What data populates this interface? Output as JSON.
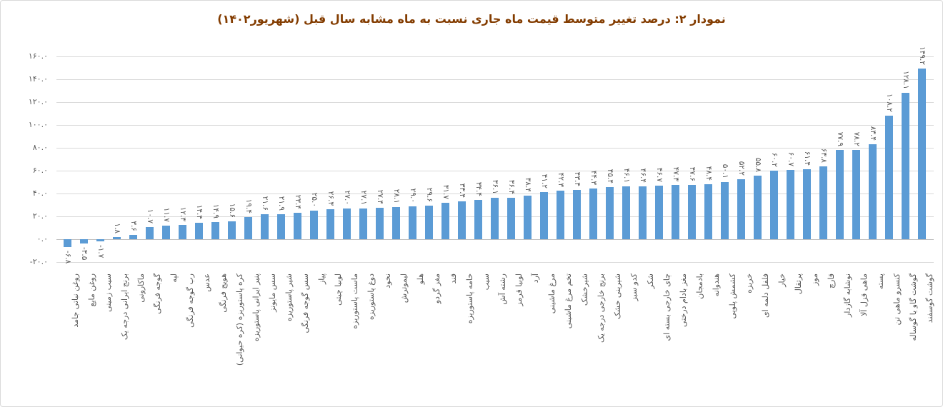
{
  "title": "نمودار ۲: درصد تغییر متوسط قیمت ماه جاری نسبت به ماه مشابه سال قبل (شهریور۱۴۰۲)",
  "colors": {
    "bar": "#5b9bd5",
    "title_text": "#833c00",
    "axis_text": "#595959",
    "gridline": "#d9d9d9",
    "zero_line": "#bfbfbf",
    "frame_border": "#d9d9d9"
  },
  "y_axis": {
    "min": -20,
    "max": 160,
    "step": 20,
    "ticks": [
      {
        "label": "۱۶۰.۰",
        "value": 160
      },
      {
        "label": "۱۴۰.۰",
        "value": 140
      },
      {
        "label": "۱۲۰.۰",
        "value": 120
      },
      {
        "label": "۱۰۰.۰",
        "value": 100
      },
      {
        "label": "۸۰.۰",
        "value": 80
      },
      {
        "label": "۶۰.۰",
        "value": 60
      },
      {
        "label": "۴۰.۰",
        "value": 40
      },
      {
        "label": "۲۰.۰",
        "value": 20
      },
      {
        "label": "۰.۰",
        "value": 0
      },
      {
        "label": "-۲۰.۰",
        "value": -20
      }
    ]
  },
  "chart_data": {
    "type": "bar",
    "title": "نمودار ۲: درصد تغییر متوسط قیمت ماه جاری نسبت به ماه مشابه سال قبل (شهریور۱۴۰۲)",
    "xlabel": "",
    "ylabel": "",
    "ylim": [
      -20,
      160
    ],
    "grid": true,
    "sorted": "ascending",
    "legend": "none",
    "categories": [
      "روغن نباتی جامد",
      "روغن مایع",
      "سیب زمینی",
      "برنج ایرانی درجه یک",
      "ماکارونی",
      "گوجه فرنگی",
      "لپه",
      "رب گوجه فرنگی",
      "عدس",
      "هویج فرنگی",
      "کره پاستوریزه (کره حیوانی)",
      "پنیر ایرانی پاستوریزه",
      "سس مایونز",
      "شیر پاستوریزه",
      "سس گوجه فرنگی",
      "پیاز",
      "لوبیا چیتی",
      "ماست پاستوریزه",
      "دوغ پاستوریزه",
      "نخود",
      "لیموترش",
      "هلو",
      "مغز گردو",
      "قند",
      "خامه پاستوریزه",
      "سیب",
      "رشته آش",
      "لوبیا قرمز",
      "آرد",
      "مرغ ماشینی",
      "تخم مرغ ماشینی",
      "شیرخشک",
      "برنج خارجی درجه یک",
      "شیرینی خشک",
      "کدو سبز",
      "شکر",
      "چای خارجی بسته ای",
      "مغز بادام درختی",
      "بادمجان",
      "هندوانه",
      "کشمش پلویی",
      "خربزه",
      "فلفل دلمه ای",
      "خیار",
      "پرتقال",
      "موز",
      "قارچ",
      "نوشابه گازدار",
      "ماهی قزل آلا",
      "پسته",
      "کنسرو ماهی تن",
      "گوشت گاو یا گوساله",
      "گوشت گوسفند"
    ],
    "values": [
      -6.8,
      -3.5,
      -1.7,
      1.8,
      3.6,
      10.7,
      11.7,
      12.3,
      14.4,
      14.9,
      15.6,
      19.4,
      21.6,
      21.9,
      23.4,
      25.0,
      26.3,
      27.0,
      27.1,
      27.4,
      28.1,
      29.0,
      29.6,
      31.7,
      33.4,
      34.4,
      36.1,
      36.4,
      38.4,
      41.2,
      42.3,
      43.4,
      44.3,
      45.4,
      46.1,
      46.4,
      46.7,
      47.3,
      47.6,
      48.4,
      50.1,
      52.2,
      55.8,
      60.2,
      60.7,
      61.4,
      63.8,
      77.9,
      78.2,
      83.4,
      108.2,
      128.1,
      149.2
    ],
    "value_labels": [
      "-۶.۸",
      "-۳.۵",
      "-۱.۷",
      "۱.۸",
      "۳.۶",
      "۱۰.۷",
      "۱۱.۷",
      "۱۲.۳",
      "۱۴.۴",
      "۱۴.۹",
      "۱۵.۶",
      "۱۹.۴",
      "۲۱.۶",
      "۲۱.۹",
      "۲۳.۴",
      "۲۵.۰",
      "۲۶.۳",
      "۲۷.۰",
      "۲۷.۱",
      "۲۷.۴",
      "۲۸.۱",
      "۲۹.۰",
      "۲۹.۶",
      "۳۱.۷",
      "۳۳.۴",
      "۳۴.۴",
      "۳۶.۱",
      "۳۶.۴",
      "۳۸.۴",
      "۴۱.۲",
      "۴۲.۳",
      "۴۳.۴",
      "۴۴.۳",
      "۴۵.۴",
      "۴۶.۱",
      "۴۶.۴",
      "۴۶.۷",
      "۴۷.۳",
      "۴۷.۶",
      "۴۸.۴",
      "۵۰.۱",
      "۵۲.۲",
      "۵۵.۸",
      "۶۰.۲",
      "۶۰.۷",
      "۶۱.۴",
      "۶۳.۸",
      "۷۷.۹",
      "۷۸.۲",
      "۸۳.۴",
      "۱۰۸.۲",
      "۱۲۸.۱",
      "۱۴۹.۲"
    ]
  }
}
